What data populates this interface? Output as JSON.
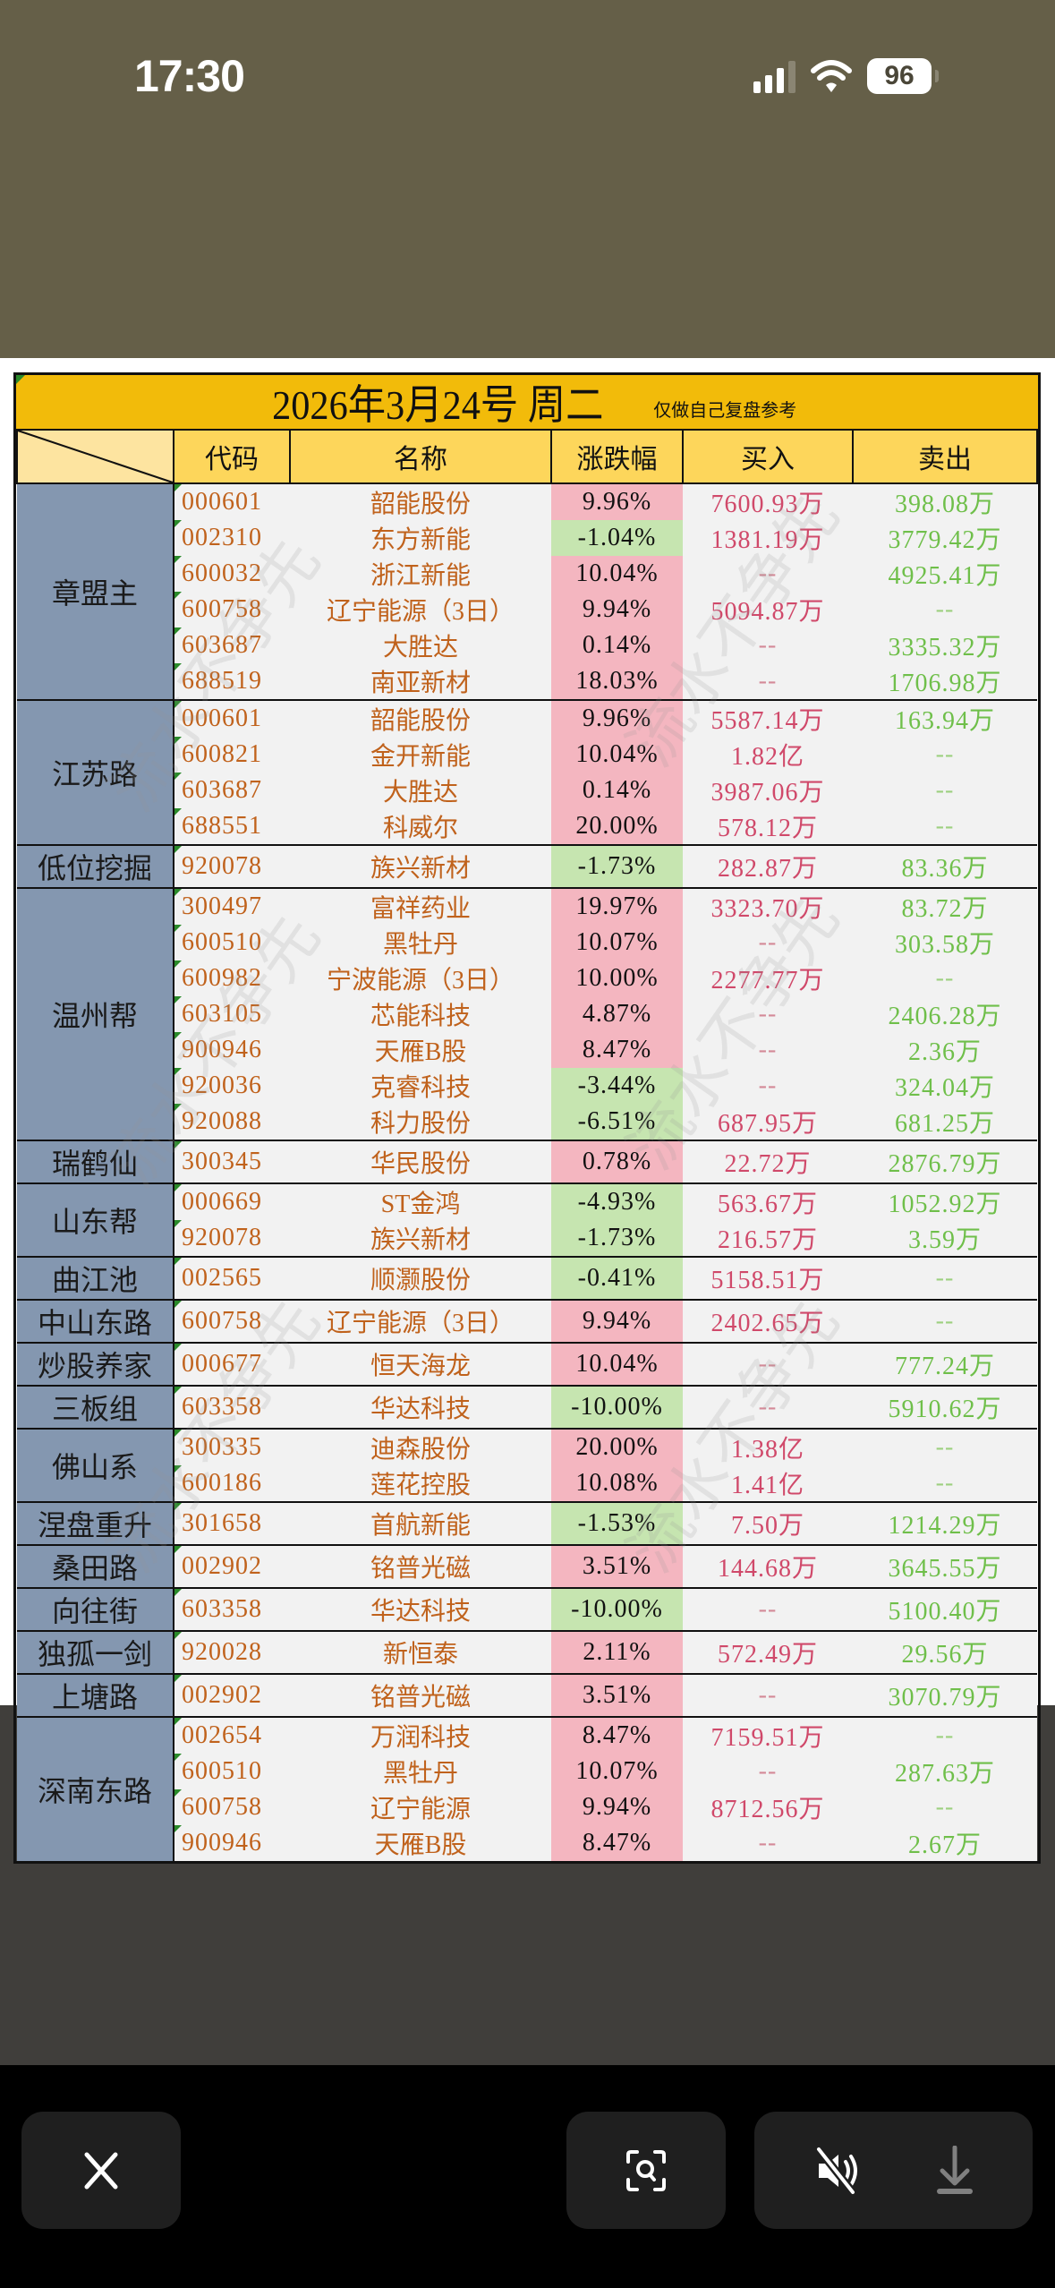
{
  "status_bar": {
    "time": "17:30",
    "battery": "96",
    "signal_bars": 3,
    "wifi": true
  },
  "sheet": {
    "title": "2026年3月24号  周二",
    "note": "仅做自己复盘参考",
    "headers": {
      "code": "代码",
      "name": "名称",
      "pct": "涨跌幅",
      "buy": "买入",
      "sell": "卖出"
    },
    "watermark": "流水不争先",
    "colors": {
      "title_bg": "#f2bb0a",
      "header_bg": "#fdd65b",
      "group_bg": "#8497b0",
      "up_bg": "#f4b6c0",
      "down_bg": "#c6e5b0",
      "code_text": "#c0621c",
      "buy_text": "#d0496a",
      "sell_text": "#6fbf4a"
    },
    "groups": [
      {
        "name": "章盟主",
        "rows": [
          {
            "code": "000601",
            "name": "韶能股份",
            "pct": "9.96%",
            "dir": "up",
            "buy": "7600.93万",
            "sell": "398.08万"
          },
          {
            "code": "002310",
            "name": "东方新能",
            "pct": "-1.04%",
            "dir": "down",
            "buy": "1381.19万",
            "sell": "3779.42万"
          },
          {
            "code": "600032",
            "name": "浙江新能",
            "pct": "10.04%",
            "dir": "up",
            "buy": "--",
            "sell": "4925.41万"
          },
          {
            "code": "600758",
            "name": "辽宁能源（3日）",
            "pct": "9.94%",
            "dir": "up",
            "buy": "5094.87万",
            "sell": "--"
          },
          {
            "code": "603687",
            "name": "大胜达",
            "pct": "0.14%",
            "dir": "up",
            "buy": "--",
            "sell": "3335.32万"
          },
          {
            "code": "688519",
            "name": "南亚新材",
            "pct": "18.03%",
            "dir": "up",
            "buy": "--",
            "sell": "1706.98万"
          }
        ]
      },
      {
        "name": "江苏路",
        "rows": [
          {
            "code": "000601",
            "name": "韶能股份",
            "pct": "9.96%",
            "dir": "up",
            "buy": "5587.14万",
            "sell": "163.94万"
          },
          {
            "code": "600821",
            "name": "金开新能",
            "pct": "10.04%",
            "dir": "up",
            "buy": "1.82亿",
            "sell": "--"
          },
          {
            "code": "603687",
            "name": "大胜达",
            "pct": "0.14%",
            "dir": "up",
            "buy": "3987.06万",
            "sell": "--"
          },
          {
            "code": "688551",
            "name": "科威尔",
            "pct": "20.00%",
            "dir": "up",
            "buy": "578.12万",
            "sell": "--"
          }
        ]
      },
      {
        "name": "低位挖掘",
        "rows": [
          {
            "code": "920078",
            "name": "族兴新材",
            "pct": "-1.73%",
            "dir": "down",
            "buy": "282.87万",
            "sell": "83.36万"
          }
        ]
      },
      {
        "name": "温州帮",
        "rows": [
          {
            "code": "300497",
            "name": "富祥药业",
            "pct": "19.97%",
            "dir": "up",
            "buy": "3323.70万",
            "sell": "83.72万"
          },
          {
            "code": "600510",
            "name": "黑牡丹",
            "pct": "10.07%",
            "dir": "up",
            "buy": "--",
            "sell": "303.58万"
          },
          {
            "code": "600982",
            "name": "宁波能源（3日）",
            "pct": "10.00%",
            "dir": "up",
            "buy": "2277.77万",
            "sell": "--"
          },
          {
            "code": "603105",
            "name": "芯能科技",
            "pct": "4.87%",
            "dir": "up",
            "buy": "--",
            "sell": "2406.28万"
          },
          {
            "code": "900946",
            "name": "天雁B股",
            "pct": "8.47%",
            "dir": "up",
            "buy": "--",
            "sell": "2.36万"
          },
          {
            "code": "920036",
            "name": "克睿科技",
            "pct": "-3.44%",
            "dir": "down",
            "buy": "--",
            "sell": "324.04万"
          },
          {
            "code": "920088",
            "name": "科力股份",
            "pct": "-6.51%",
            "dir": "down",
            "buy": "687.95万",
            "sell": "681.25万"
          }
        ]
      },
      {
        "name": "瑞鹤仙",
        "rows": [
          {
            "code": "300345",
            "name": "华民股份",
            "pct": "0.78%",
            "dir": "up",
            "buy": "22.72万",
            "sell": "2876.79万"
          }
        ]
      },
      {
        "name": "山东帮",
        "rows": [
          {
            "code": "000669",
            "name": "ST金鸿",
            "pct": "-4.93%",
            "dir": "down",
            "buy": "563.67万",
            "sell": "1052.92万"
          },
          {
            "code": "920078",
            "name": "族兴新材",
            "pct": "-1.73%",
            "dir": "down",
            "buy": "216.57万",
            "sell": "3.59万"
          }
        ]
      },
      {
        "name": "曲江池",
        "rows": [
          {
            "code": "002565",
            "name": "顺灏股份",
            "pct": "-0.41%",
            "dir": "down",
            "buy": "5158.51万",
            "sell": "--"
          }
        ]
      },
      {
        "name": "中山东路",
        "rows": [
          {
            "code": "600758",
            "name": "辽宁能源（3日）",
            "pct": "9.94%",
            "dir": "up",
            "buy": "2402.65万",
            "sell": "--"
          }
        ]
      },
      {
        "name": "炒股养家",
        "rows": [
          {
            "code": "000677",
            "name": "恒天海龙",
            "pct": "10.04%",
            "dir": "up",
            "buy": "--",
            "sell": "777.24万"
          }
        ]
      },
      {
        "name": "三板组",
        "rows": [
          {
            "code": "603358",
            "name": "华达科技",
            "pct": "-10.00%",
            "dir": "down",
            "buy": "--",
            "sell": "5910.62万"
          }
        ]
      },
      {
        "name": "佛山系",
        "rows": [
          {
            "code": "300335",
            "name": "迪森股份",
            "pct": "20.00%",
            "dir": "up",
            "buy": "1.38亿",
            "sell": "--"
          },
          {
            "code": "600186",
            "name": "莲花控股",
            "pct": "10.08%",
            "dir": "up",
            "buy": "1.41亿",
            "sell": "--"
          }
        ]
      },
      {
        "name": "涅盘重升",
        "rows": [
          {
            "code": "301658",
            "name": "首航新能",
            "pct": "-1.53%",
            "dir": "down",
            "buy": "7.50万",
            "sell": "1214.29万"
          }
        ]
      },
      {
        "name": "桑田路",
        "rows": [
          {
            "code": "002902",
            "name": "铭普光磁",
            "pct": "3.51%",
            "dir": "up",
            "buy": "144.68万",
            "sell": "3645.55万"
          }
        ]
      },
      {
        "name": "向往街",
        "rows": [
          {
            "code": "603358",
            "name": "华达科技",
            "pct": "-10.00%",
            "dir": "down",
            "buy": "--",
            "sell": "5100.40万"
          }
        ]
      },
      {
        "name": "独孤一剑",
        "rows": [
          {
            "code": "920028",
            "name": "新恒泰",
            "pct": "2.11%",
            "dir": "up",
            "buy": "572.49万",
            "sell": "29.56万"
          }
        ]
      },
      {
        "name": "上塘路",
        "rows": [
          {
            "code": "002902",
            "name": "铭普光磁",
            "pct": "3.51%",
            "dir": "up",
            "buy": "--",
            "sell": "3070.79万"
          }
        ]
      },
      {
        "name": "深南东路",
        "rows": [
          {
            "code": "002654",
            "name": "万润科技",
            "pct": "8.47%",
            "dir": "up",
            "buy": "7159.51万",
            "sell": "--"
          },
          {
            "code": "600510",
            "name": "黑牡丹",
            "pct": "10.07%",
            "dir": "up",
            "buy": "--",
            "sell": "287.63万"
          },
          {
            "code": "600758",
            "name": "辽宁能源",
            "pct": "9.94%",
            "dir": "up",
            "buy": "8712.56万",
            "sell": "--"
          },
          {
            "code": "900946",
            "name": "天雁B股",
            "pct": "8.47%",
            "dir": "up",
            "buy": "--",
            "sell": "2.67万"
          }
        ]
      }
    ]
  },
  "toolbar": {
    "close": "close-icon",
    "visual_lookup": "visual-lookup-icon",
    "mute": "speaker-muted-icon",
    "download": "download-icon"
  }
}
